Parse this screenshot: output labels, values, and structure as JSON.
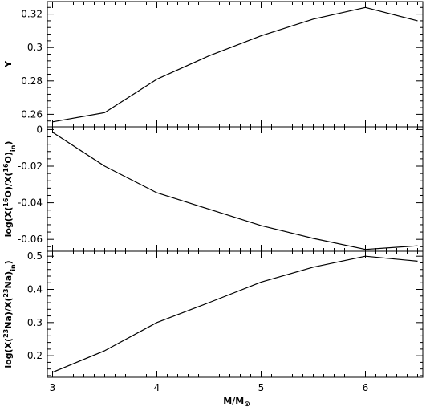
{
  "chart_data": [
    {
      "type": "line",
      "xlabel": "M/M⊙",
      "ylabel": "Y",
      "ylabel_parts": [
        "Y"
      ],
      "xlim": [
        2.95,
        6.55
      ],
      "ylim": [
        0.2525,
        0.3275
      ],
      "x_ticks": [
        3,
        4,
        5,
        6
      ],
      "y_ticks": [
        0.26,
        0.28,
        0.3,
        0.32
      ],
      "y_tick_labels": [
        "0.26",
        "0.28",
        "0.3",
        "0.32"
      ],
      "grid": false,
      "series": [
        {
          "x": [
            3,
            3.5,
            4,
            4.5,
            5,
            5.5,
            6,
            6.5
          ],
          "y": [
            0.2555,
            0.261,
            0.281,
            0.295,
            0.307,
            0.317,
            0.324,
            0.316
          ]
        }
      ]
    },
    {
      "type": "line",
      "xlabel": "M/M⊙",
      "ylabel": "log(X(16O)/X(16O)in)",
      "ylabel_parts": [
        "log(X(",
        "16",
        "O)/X(",
        "16",
        "O)",
        "in",
        ")"
      ],
      "xlim": [
        2.95,
        6.55
      ],
      "ylim": [
        -0.0665,
        0.0015
      ],
      "x_ticks": [
        3,
        4,
        5,
        6
      ],
      "y_ticks": [
        -0.06,
        -0.04,
        -0.02,
        0
      ],
      "y_tick_labels": [
        "-0.06",
        "-0.04",
        "-0.02",
        "0"
      ],
      "grid": false,
      "series": [
        {
          "x": [
            3,
            3.5,
            4,
            4.5,
            5,
            5.5,
            6,
            6.5
          ],
          "y": [
            -0.0015,
            -0.02,
            -0.0345,
            -0.0435,
            -0.0525,
            -0.0595,
            -0.0655,
            -0.0635
          ]
        }
      ]
    },
    {
      "type": "line",
      "xlabel": "M/M⊙",
      "ylabel": "log(X(23Na)/X(23Na)in)",
      "ylabel_parts": [
        "log(X(",
        "23",
        "Na)/X(",
        "23",
        "Na)",
        "in",
        ")"
      ],
      "xlim": [
        2.95,
        6.55
      ],
      "ylim": [
        0.135,
        0.515
      ],
      "x_ticks": [
        3,
        4,
        5,
        6
      ],
      "x_tick_labels": [
        "3",
        "4",
        "5",
        "6"
      ],
      "y_ticks": [
        0.2,
        0.3,
        0.4,
        0.5
      ],
      "y_tick_labels": [
        "0.2",
        "0.3",
        "0.4",
        "0.5"
      ],
      "grid": false,
      "series": [
        {
          "x": [
            3,
            3.5,
            4,
            4.5,
            5,
            5.5,
            6,
            6.5
          ],
          "y": [
            0.15,
            0.215,
            0.3,
            0.36,
            0.422,
            0.467,
            0.5,
            0.485
          ]
        }
      ]
    }
  ],
  "x_axis_label_main": "M/M",
  "x_axis_label_sub": "⊙"
}
